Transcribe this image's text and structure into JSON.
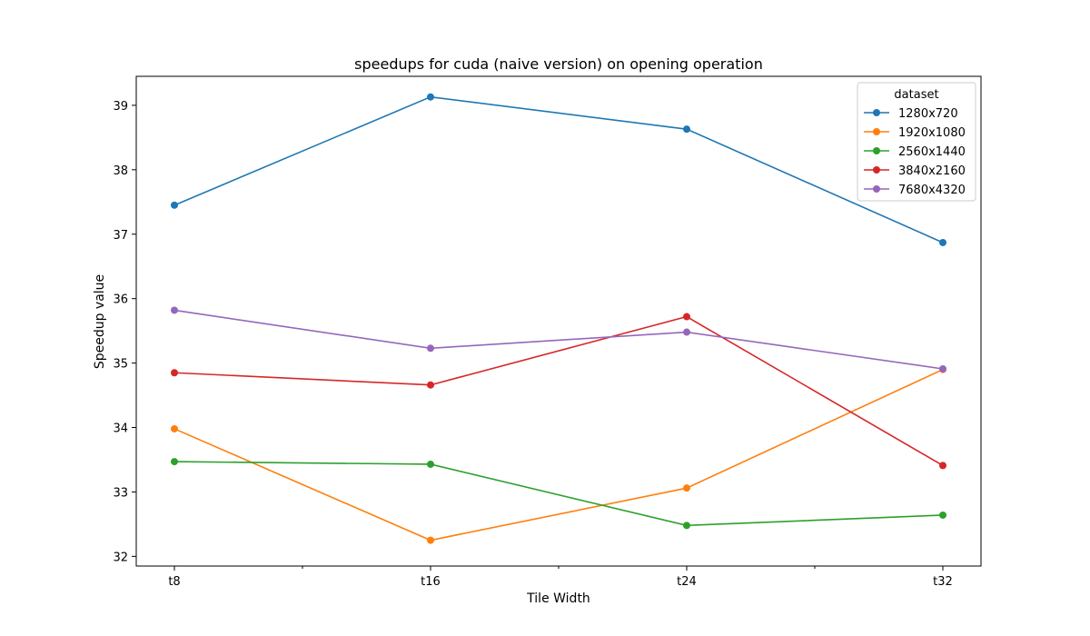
{
  "chart_data": {
    "type": "line",
    "title": "speedups for cuda (naive version) on opening operation",
    "xlabel": "Tile Width",
    "ylabel": "Speedup value",
    "categories": [
      "t8",
      "t16",
      "t24",
      "t32"
    ],
    "yticks": [
      "32",
      "33",
      "34",
      "35",
      "36",
      "37",
      "38",
      "39"
    ],
    "ylim": [
      31.85,
      39.45
    ],
    "grid": false,
    "legend": {
      "title": "dataset",
      "placement": "top-right"
    },
    "series": [
      {
        "name": "1280x720",
        "color": "#1f77b4",
        "values": [
          37.45,
          39.13,
          38.63,
          36.87
        ]
      },
      {
        "name": "1920x1080",
        "color": "#ff7f0e",
        "values": [
          33.98,
          32.25,
          33.06,
          34.9
        ]
      },
      {
        "name": "2560x1440",
        "color": "#2ca02c",
        "values": [
          33.47,
          33.43,
          32.48,
          32.64
        ]
      },
      {
        "name": "3840x2160",
        "color": "#d62728",
        "values": [
          34.85,
          34.66,
          35.72,
          33.41
        ]
      },
      {
        "name": "7680x4320",
        "color": "#9467bd",
        "values": [
          35.82,
          35.23,
          35.48,
          34.91
        ]
      }
    ]
  }
}
